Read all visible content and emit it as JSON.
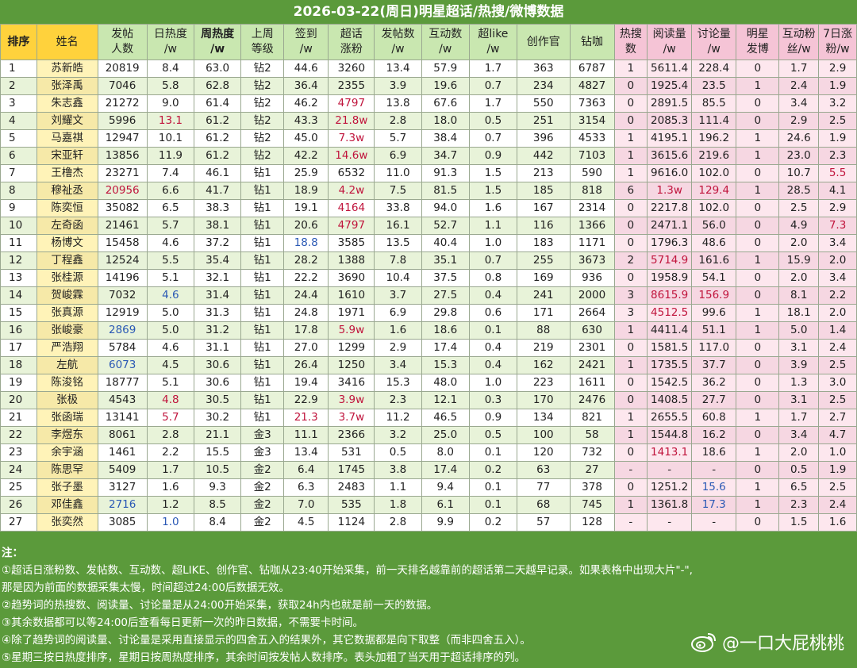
{
  "title": "2026-03-22(周日)明星超话/热搜/微博数据",
  "headers": [
    {
      "key": "rank",
      "label": "排序",
      "bold": true,
      "bg": "yellow"
    },
    {
      "key": "name",
      "label": "姓名",
      "bg": "yellow"
    },
    {
      "key": "posters",
      "label": "发帖\n人数",
      "bg": "green"
    },
    {
      "key": "daily_heat",
      "label": "日热度\n/w",
      "bg": "green"
    },
    {
      "key": "weekly_heat",
      "label": "周热度\n/w",
      "bold": true,
      "bg": "green"
    },
    {
      "key": "last_week_level",
      "label": "上周\n等级",
      "bg": "green"
    },
    {
      "key": "checkin",
      "label": "签到\n/w",
      "bg": "green"
    },
    {
      "key": "fans_growth",
      "label": "超话\n涨粉",
      "bg": "green"
    },
    {
      "key": "posts",
      "label": "发帖数\n/w",
      "bg": "green"
    },
    {
      "key": "interactions",
      "label": "互动数\n/w",
      "bg": "green"
    },
    {
      "key": "super_like",
      "label": "超like\n/w",
      "bg": "green"
    },
    {
      "key": "creators",
      "label": "创作官",
      "bg": "green"
    },
    {
      "key": "diamond",
      "label": "钻咖",
      "bg": "green"
    },
    {
      "key": "hot_search",
      "label": "热搜\n数",
      "bg": "pink"
    },
    {
      "key": "reads",
      "label": "阅读量\n/w",
      "bg": "pink"
    },
    {
      "key": "discussions",
      "label": "讨论量\n/w",
      "bg": "pink"
    },
    {
      "key": "star_posts",
      "label": "明星\n发博",
      "bg": "pink"
    },
    {
      "key": "interactive_fans",
      "label": "互动粉\n丝/w",
      "bg": "pink"
    },
    {
      "key": "week_fans_growth",
      "label": "7日涨\n粉/w",
      "bg": "pink"
    }
  ],
  "rows": [
    [
      "1",
      "苏新皓",
      "20819",
      "8.4",
      "63.0",
      "钻2",
      "44.6",
      "3260",
      "13.4",
      "57.9",
      "1.7",
      "363",
      "6787",
      "1",
      "5611.4",
      "228.4",
      "0",
      "1.7",
      "2.9"
    ],
    [
      "2",
      "张泽禹",
      "7046",
      "5.8",
      "62.8",
      "钻2",
      "36.4",
      "2355",
      "3.9",
      "19.6",
      "0.7",
      "234",
      "4827",
      "0",
      "1925.4",
      "23.5",
      "1",
      "2.4",
      "1.9"
    ],
    [
      "3",
      "朱志鑫",
      "21272",
      "9.0",
      "61.4",
      "钻2",
      "46.2",
      "4797",
      "13.8",
      "67.6",
      "1.7",
      "550",
      "7363",
      "0",
      "2891.5",
      "85.5",
      "0",
      "3.4",
      "3.2"
    ],
    [
      "4",
      "刘耀文",
      "5996",
      "13.1",
      "61.2",
      "钻2",
      "43.3",
      "21.8w",
      "2.8",
      "18.0",
      "0.5",
      "251",
      "3154",
      "0",
      "2085.3",
      "111.4",
      "0",
      "2.9",
      "2.5"
    ],
    [
      "5",
      "马嘉祺",
      "12947",
      "10.1",
      "61.2",
      "钻2",
      "45.0",
      "7.3w",
      "5.7",
      "38.4",
      "0.7",
      "396",
      "4533",
      "1",
      "4195.1",
      "196.2",
      "1",
      "24.6",
      "1.9"
    ],
    [
      "6",
      "宋亚轩",
      "13856",
      "11.9",
      "61.2",
      "钻2",
      "42.2",
      "14.6w",
      "6.9",
      "34.7",
      "0.9",
      "442",
      "7103",
      "1",
      "3615.6",
      "219.6",
      "1",
      "23.0",
      "2.3"
    ],
    [
      "7",
      "王橹杰",
      "23271",
      "7.4",
      "46.1",
      "钻1",
      "25.9",
      "6532",
      "11.0",
      "91.3",
      "1.5",
      "213",
      "590",
      "1",
      "9616.0",
      "102.0",
      "0",
      "10.7",
      "5.5"
    ],
    [
      "8",
      "穆祉丞",
      "20956",
      "6.6",
      "41.7",
      "钻1",
      "18.9",
      "4.2w",
      "7.5",
      "81.5",
      "1.5",
      "185",
      "818",
      "6",
      "1.3w",
      "129.4",
      "1",
      "28.5",
      "4.1"
    ],
    [
      "9",
      "陈奕恒",
      "35082",
      "6.5",
      "38.3",
      "钻1",
      "19.1",
      "4164",
      "33.8",
      "94.0",
      "1.6",
      "167",
      "2314",
      "0",
      "2217.8",
      "102.0",
      "0",
      "2.5",
      "2.9"
    ],
    [
      "10",
      "左奇函",
      "21461",
      "5.7",
      "38.1",
      "钻1",
      "20.6",
      "4797",
      "16.1",
      "52.7",
      "1.1",
      "116",
      "1366",
      "0",
      "2471.1",
      "56.0",
      "0",
      "4.9",
      "7.3"
    ],
    [
      "11",
      "杨博文",
      "15458",
      "4.6",
      "37.2",
      "钻1",
      "18.8",
      "3585",
      "13.5",
      "40.4",
      "1.0",
      "183",
      "1171",
      "0",
      "1796.3",
      "48.6",
      "0",
      "2.0",
      "3.4"
    ],
    [
      "12",
      "丁程鑫",
      "12524",
      "5.5",
      "35.4",
      "钻1",
      "28.2",
      "1388",
      "7.8",
      "35.1",
      "0.7",
      "255",
      "3673",
      "2",
      "5714.9",
      "161.6",
      "1",
      "15.9",
      "2.0"
    ],
    [
      "13",
      "张桂源",
      "14196",
      "5.1",
      "32.1",
      "钻1",
      "22.2",
      "3690",
      "10.4",
      "37.5",
      "0.8",
      "169",
      "936",
      "0",
      "1958.9",
      "54.1",
      "0",
      "2.0",
      "3.4"
    ],
    [
      "14",
      "贺峻霖",
      "7032",
      "4.6",
      "31.4",
      "钻1",
      "24.4",
      "1610",
      "3.7",
      "27.5",
      "0.4",
      "241",
      "2000",
      "3",
      "8615.9",
      "156.9",
      "0",
      "8.1",
      "2.2"
    ],
    [
      "15",
      "张真源",
      "12919",
      "5.0",
      "31.3",
      "钻1",
      "24.8",
      "1971",
      "6.9",
      "29.8",
      "0.6",
      "171",
      "2664",
      "3",
      "4512.5",
      "99.6",
      "1",
      "18.1",
      "2.0"
    ],
    [
      "16",
      "张峻豪",
      "2869",
      "5.0",
      "31.2",
      "钻1",
      "17.8",
      "5.9w",
      "1.6",
      "18.6",
      "0.1",
      "88",
      "630",
      "1",
      "4411.4",
      "51.1",
      "1",
      "5.0",
      "1.4"
    ],
    [
      "17",
      "严浩翔",
      "5784",
      "4.6",
      "31.1",
      "钻1",
      "27.0",
      "1299",
      "2.9",
      "17.4",
      "0.4",
      "219",
      "2301",
      "0",
      "1581.5",
      "117.0",
      "0",
      "3.1",
      "2.4"
    ],
    [
      "18",
      "左航",
      "6073",
      "4.5",
      "30.6",
      "钻1",
      "26.4",
      "1250",
      "3.4",
      "15.3",
      "0.4",
      "162",
      "2421",
      "1",
      "1735.5",
      "37.7",
      "0",
      "3.9",
      "2.5"
    ],
    [
      "19",
      "陈浚铭",
      "18777",
      "5.1",
      "30.6",
      "钻1",
      "19.4",
      "3416",
      "15.3",
      "48.0",
      "1.0",
      "223",
      "1611",
      "0",
      "1542.5",
      "36.2",
      "0",
      "1.3",
      "3.0"
    ],
    [
      "20",
      "张极",
      "4543",
      "4.8",
      "30.5",
      "钻1",
      "22.9",
      "3.9w",
      "2.3",
      "12.1",
      "0.3",
      "170",
      "2476",
      "0",
      "1408.5",
      "27.7",
      "0",
      "3.1",
      "2.5"
    ],
    [
      "21",
      "张函瑞",
      "13141",
      "5.7",
      "30.2",
      "钻1",
      "21.3",
      "3.7w",
      "11.2",
      "46.5",
      "0.9",
      "134",
      "821",
      "1",
      "2655.5",
      "60.8",
      "1",
      "1.7",
      "2.7"
    ],
    [
      "22",
      "李煜东",
      "8061",
      "2.8",
      "21.1",
      "金3",
      "11.1",
      "2366",
      "3.2",
      "25.0",
      "0.5",
      "100",
      "58",
      "1",
      "1544.8",
      "16.2",
      "0",
      "3.4",
      "4.7"
    ],
    [
      "23",
      "余宇涵",
      "1461",
      "2.2",
      "15.5",
      "金3",
      "13.4",
      "531",
      "0.5",
      "8.0",
      "0.1",
      "120",
      "732",
      "0",
      "1413.1",
      "18.6",
      "1",
      "2.0",
      "1.0"
    ],
    [
      "24",
      "陈思罕",
      "5409",
      "1.7",
      "10.5",
      "金2",
      "6.4",
      "1745",
      "3.8",
      "17.4",
      "0.2",
      "63",
      "27",
      "-",
      "-",
      "-",
      "0",
      "0.5",
      "1.9"
    ],
    [
      "25",
      "张子墨",
      "3127",
      "1.6",
      "9.3",
      "金2",
      "6.3",
      "2483",
      "1.1",
      "9.4",
      "0.1",
      "77",
      "378",
      "0",
      "1251.2",
      "15.6",
      "1",
      "6.5",
      "2.5"
    ],
    [
      "26",
      "邓佳鑫",
      "2716",
      "1.2",
      "8.5",
      "金2",
      "7.0",
      "535",
      "1.8",
      "6.1",
      "0.1",
      "68",
      "745",
      "1",
      "1361.8",
      "17.3",
      "1",
      "2.3",
      "2.4"
    ],
    [
      "27",
      "张奕然",
      "3085",
      "1.0",
      "8.4",
      "金2",
      "4.5",
      "1124",
      "2.8",
      "9.9",
      "0.2",
      "57",
      "128",
      "-",
      "-",
      "-",
      "0",
      "1.5",
      "1.6"
    ]
  ],
  "highlights": {
    "red": [
      "3:7",
      "4:3",
      "4:7",
      "5:7",
      "6:7",
      "7:18",
      "8:2",
      "8:7",
      "8:14",
      "8:15",
      "9:7",
      "10:7",
      "10:18",
      "12:14",
      "14:14",
      "14:15",
      "15:14",
      "16:7",
      "20:3",
      "20:7",
      "21:3",
      "21:6",
      "21:7",
      "23:14"
    ],
    "blue": [
      "11:6",
      "14:3",
      "16:2",
      "18:2",
      "25:15",
      "26:2",
      "26:15",
      "27:3"
    ]
  },
  "notes": {
    "heading": "注：",
    "items": [
      "①超话日涨粉数、发帖数、互动数、超LIKE、创作官、钻咖从23:40开始采集，前一天排名越靠前的超话第二天越早记录。如果表格中出现大片\"-\",",
      "那是因为前面的数据采集太慢，时间超过24:00后数据无效。",
      "②趋势词的热搜数、阅读量、讨论量是从24:00开始采集，获取24h内也就是前一天的数据。",
      "③其余数据都可以等24:00后查看每日更新一次的昨日数据，不需要卡时间。",
      "④除了趋势词的阅读量、讨论量是采用直接显示的四舍五入的结果外，其它数据都是向下取整（而非四舍五入）。",
      "⑤星期三按日热度排序，星期日按周热度排序，其余时间按发帖人数排序。表头加粗了当天用于超话排序的列。"
    ]
  },
  "watermark": {
    "handle": "@一口大屁桃桃",
    "icon": "weibo-icon"
  },
  "colors": {
    "background": "#5b9a3b",
    "header_yellow": "#ffd23c",
    "header_green": "#c9e7b0",
    "header_pink": "#f5c4d6",
    "red": "#c0143c",
    "blue": "#2b59b5"
  }
}
